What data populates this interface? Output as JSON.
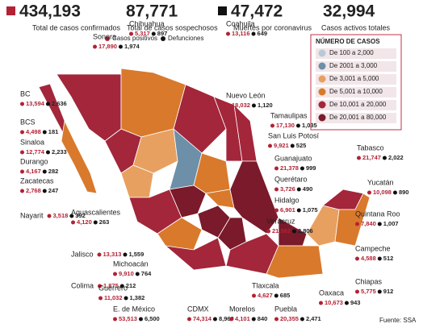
{
  "header": {
    "stats": [
      {
        "value": "434,193",
        "label": "Total de casos confirmados"
      },
      {
        "value": "87,771",
        "label": "Total de casos sospechosos"
      },
      {
        "value": "47,472",
        "label": "Muertes por coronavirus"
      },
      {
        "value": "32,994",
        "label": "Casos activos totales"
      }
    ]
  },
  "legend": {
    "positive": "Casos positivos",
    "deaths": "Defunciones"
  },
  "scale": {
    "title": "NÚMERO DE CASOS",
    "ranges": [
      "De 100 a 2,000",
      "De 2001 a 3,000",
      "De 3,001 a 5,000",
      "De 5,001 a 10,000",
      "De 10,001 a 20,000",
      "De 20,001 a 80,000"
    ]
  },
  "states": [
    {
      "name": "Sonora",
      "cases": "17,890",
      "deaths": "1,974"
    },
    {
      "name": "Chihuahua",
      "cases": "5,317",
      "deaths": "897"
    },
    {
      "name": "Coahuila",
      "cases": "13,116",
      "deaths": "649"
    },
    {
      "name": "BC",
      "cases": "13,594",
      "deaths": "2,636"
    },
    {
      "name": "BCS",
      "cases": "4,498",
      "deaths": "181"
    },
    {
      "name": "Nuevo León",
      "cases": "18,032",
      "deaths": "1,120"
    },
    {
      "name": "Tamaulipas",
      "cases": "17,130",
      "deaths": "1,035"
    },
    {
      "name": "Sinaloa",
      "cases": "12,774",
      "deaths": "2,233"
    },
    {
      "name": "San Luis Potosí",
      "cases": "9,921",
      "deaths": "525"
    },
    {
      "name": "Durango",
      "cases": "4,167",
      "deaths": "282"
    },
    {
      "name": "Zacatecas",
      "cases": "2,768",
      "deaths": "247"
    },
    {
      "name": "Guanajuato",
      "cases": "21,378",
      "deaths": "999"
    },
    {
      "name": "Tabasco",
      "cases": "21,747",
      "deaths": "2,022"
    },
    {
      "name": "Yucatán",
      "cases": "10,098",
      "deaths": "890"
    },
    {
      "name": "Querétaro",
      "cases": "3,726",
      "deaths": "490"
    },
    {
      "name": "Nayarit",
      "cases": "3,518",
      "deaths": "392"
    },
    {
      "name": "Hidalgo",
      "cases": "6,901",
      "deaths": "1,075"
    },
    {
      "name": "Quintana Roo",
      "cases": "7,840",
      "deaths": "1,007"
    },
    {
      "name": "Aguascalientes",
      "cases": "4,120",
      "deaths": "263"
    },
    {
      "name": "Veracruz",
      "cases": "21,582",
      "deaths": "2,806"
    },
    {
      "name": "Jalisco",
      "cases": "13,313",
      "deaths": "1,559"
    },
    {
      "name": "Campeche",
      "cases": "4,588",
      "deaths": "512"
    },
    {
      "name": "Colima",
      "cases": "1,875",
      "deaths": "212"
    },
    {
      "name": "Michoacán",
      "cases": "9,910",
      "deaths": "764"
    },
    {
      "name": "Tlaxcala",
      "cases": "4,627",
      "deaths": "685"
    },
    {
      "name": "Chiapas",
      "cases": "5,775",
      "deaths": "912"
    },
    {
      "name": "Guerrero",
      "cases": "11,032",
      "deaths": "1,382"
    },
    {
      "name": "Oaxaca",
      "cases": "10,673",
      "deaths": "943"
    },
    {
      "name": "E. de México",
      "cases": "53,513",
      "deaths": "6,500"
    },
    {
      "name": "CDMX",
      "cases": "74,314",
      "deaths": "8,969"
    },
    {
      "name": "Morelos",
      "cases": "4,101",
      "deaths": "840"
    },
    {
      "name": "Puebla",
      "cases": "20,355",
      "deaths": "2,471"
    }
  ],
  "source": "Fuente: SSA"
}
